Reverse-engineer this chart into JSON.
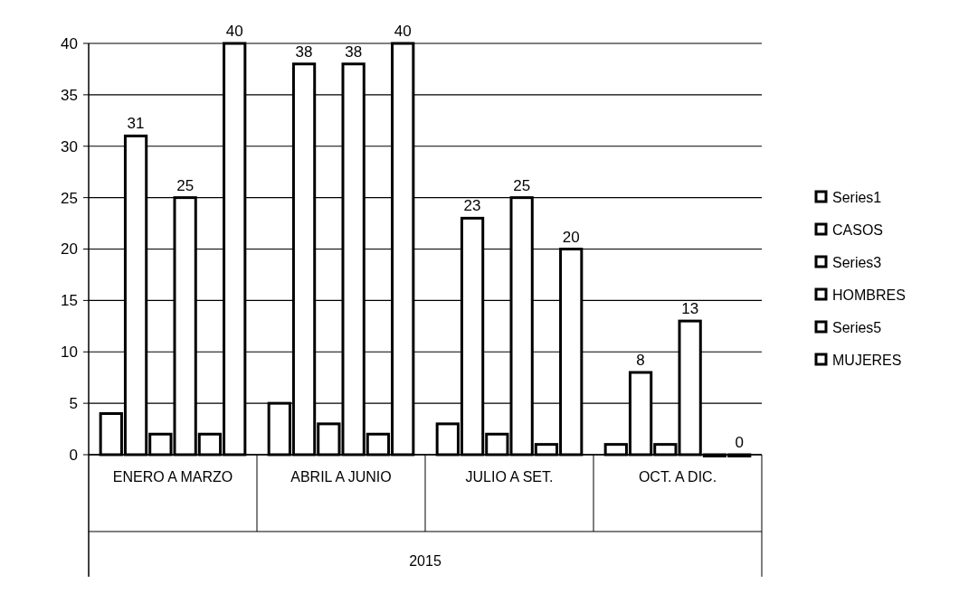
{
  "chart_data": {
    "type": "bar",
    "categories": [
      "ENERO A MARZO",
      "ABRIL A JUNIO",
      "JULIO A SET.",
      "OCT. A DIC."
    ],
    "xlabel": "2015",
    "series": [
      {
        "name": "Series1",
        "color": "#ffffff",
        "values": [
          4,
          5,
          3,
          1
        ]
      },
      {
        "name": "CASOS",
        "color": "#ffffff",
        "values": [
          31,
          38,
          23,
          8
        ],
        "value_labels": [
          "31",
          "38",
          "23",
          "8"
        ]
      },
      {
        "name": "Series3",
        "color": "#ffffff",
        "values": [
          2,
          3,
          2,
          1
        ]
      },
      {
        "name": "HOMBRES",
        "color": "#ffffff",
        "values": [
          25,
          38,
          25,
          13
        ],
        "value_labels": [
          "25",
          "38",
          "25",
          "13"
        ]
      },
      {
        "name": "Series5",
        "color": "#ffffff",
        "values": [
          2,
          2,
          1,
          0
        ]
      },
      {
        "name": "MUJERES",
        "color": "#ffffff",
        "values": [
          40,
          40,
          20,
          0
        ],
        "value_labels": [
          "40",
          "40",
          "20",
          "0"
        ]
      }
    ],
    "ylim": [
      0,
      40
    ],
    "yticks": [
      0,
      5,
      10,
      15,
      20,
      25,
      30,
      35,
      40
    ],
    "grid": "y",
    "legend": "right"
  }
}
